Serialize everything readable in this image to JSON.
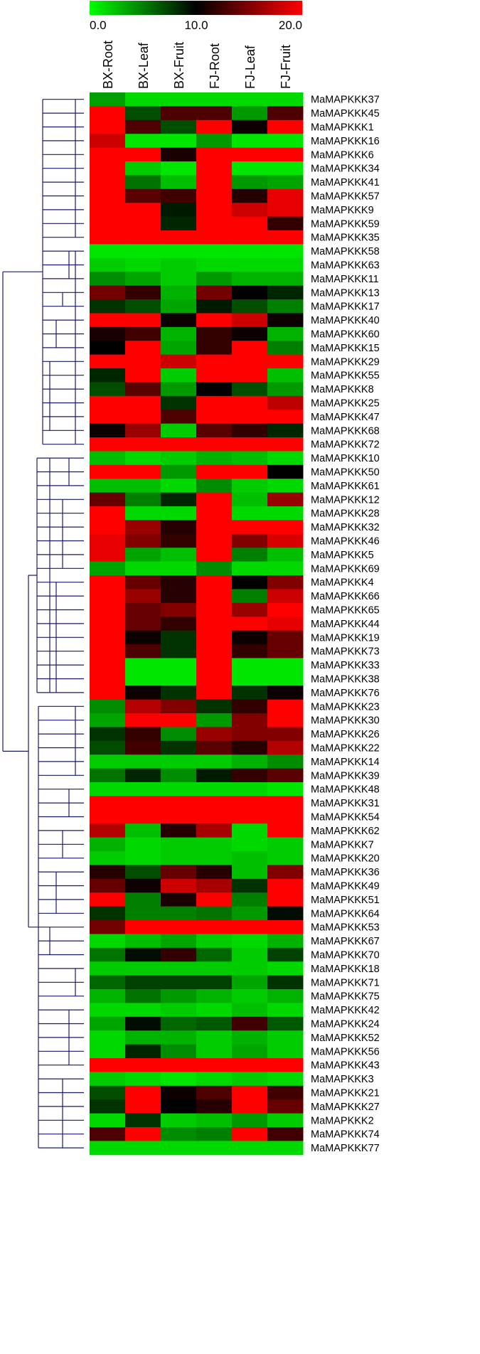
{
  "chart_data": {
    "type": "heatmap",
    "colorbar": {
      "min": 0,
      "max": 20,
      "ticks": [
        "0.0",
        "10.0",
        "20.0"
      ],
      "colors": [
        "#00ff00",
        "#000000",
        "#ff0000"
      ]
    },
    "columns": [
      "BX-Root",
      "BX-Leaf",
      "BX-Fruit",
      "FJ-Root",
      "FJ-Leaf",
      "FJ-Fruit"
    ],
    "rows": [
      {
        "gene": "MaMAPKKK37",
        "values": [
          3.8,
          1.5,
          1.5,
          1.5,
          1.5,
          1.5
        ]
      },
      {
        "gene": "MaMAPKKK45",
        "values": [
          20,
          7,
          13,
          13,
          4,
          13
        ]
      },
      {
        "gene": "MaMAPKKK1",
        "values": [
          20,
          13,
          7,
          20,
          10.5,
          20
        ]
      },
      {
        "gene": "MaMAPKKK16",
        "values": [
          18,
          1,
          1,
          4,
          1,
          1
        ]
      },
      {
        "gene": "MaMAPKKK6",
        "values": [
          20,
          20,
          11,
          20,
          20,
          20
        ]
      },
      {
        "gene": "MaMAPKKK34",
        "values": [
          20,
          2,
          1,
          20,
          1,
          1
        ]
      },
      {
        "gene": "MaMAPKKK41",
        "values": [
          20,
          5.5,
          2.5,
          20,
          4,
          3.5
        ]
      },
      {
        "gene": "MaMAPKKK57",
        "values": [
          20,
          13.5,
          12.5,
          20,
          11.5,
          19
        ]
      },
      {
        "gene": "MaMAPKKK9",
        "values": [
          20,
          20,
          9,
          20,
          18,
          19
        ]
      },
      {
        "gene": "MaMAPKKK59",
        "values": [
          20,
          20,
          8.5,
          20,
          20,
          12
        ]
      },
      {
        "gene": "MaMAPKKK35",
        "values": [
          20,
          20,
          20,
          20,
          20,
          20
        ]
      },
      {
        "gene": "MaMAPKKK58",
        "values": [
          1,
          1,
          1,
          1,
          1,
          1
        ]
      },
      {
        "gene": "MaMAPKKK63",
        "values": [
          2,
          1.5,
          2,
          1.5,
          1.5,
          1.5
        ]
      },
      {
        "gene": "MaMAPKKK11",
        "values": [
          4.5,
          3.5,
          2,
          4,
          3,
          3
        ]
      },
      {
        "gene": "MaMAPKKK13",
        "values": [
          14.5,
          12,
          3,
          14.5,
          10,
          8.5
        ]
      },
      {
        "gene": "MaMAPKKK17",
        "values": [
          8,
          7,
          3.5,
          9,
          7,
          5
        ]
      },
      {
        "gene": "MaMAPKKK40",
        "values": [
          20,
          20,
          10.5,
          20,
          18,
          10.5
        ]
      },
      {
        "gene": "MaMAPKKK60",
        "values": [
          11,
          12.5,
          3,
          12,
          10.5,
          3
        ]
      },
      {
        "gene": "MaMAPKKK15",
        "values": [
          10,
          20,
          3.5,
          12,
          20,
          5
        ]
      },
      {
        "gene": "MaMAPKKK29",
        "values": [
          20,
          20,
          18,
          20,
          20,
          20
        ]
      },
      {
        "gene": "MaMAPKKK55",
        "values": [
          8.5,
          20,
          2,
          20,
          20,
          2.5
        ]
      },
      {
        "gene": "MaMAPKKK8",
        "values": [
          7,
          13.5,
          4,
          10,
          7,
          4
        ]
      },
      {
        "gene": "MaMAPKKK25",
        "values": [
          20,
          20,
          8,
          20,
          20,
          17.5
        ]
      },
      {
        "gene": "MaMAPKKK47",
        "values": [
          20,
          20,
          13,
          20,
          20,
          20
        ]
      },
      {
        "gene": "MaMAPKKK68",
        "values": [
          10.5,
          16,
          2,
          13.5,
          12,
          8.5
        ]
      },
      {
        "gene": "MaMAPKKK72",
        "values": [
          20,
          20,
          20,
          20,
          20,
          20
        ]
      },
      {
        "gene": "MaMAPKKK10",
        "values": [
          2.5,
          1.5,
          2,
          3,
          2.5,
          1.5
        ]
      },
      {
        "gene": "MaMAPKKK50",
        "values": [
          20,
          20,
          4,
          20,
          20,
          10
        ]
      },
      {
        "gene": "MaMAPKKK61",
        "values": [
          2.5,
          2.5,
          1.5,
          4.5,
          2,
          1.5
        ]
      },
      {
        "gene": "MaMAPKKK12",
        "values": [
          14,
          5,
          8.5,
          20,
          2.5,
          16
        ]
      },
      {
        "gene": "MaMAPKKK28",
        "values": [
          20,
          1.5,
          1.5,
          20,
          1.5,
          1.5
        ]
      },
      {
        "gene": "MaMAPKKK32",
        "values": [
          20,
          16,
          11.5,
          20,
          20,
          20
        ]
      },
      {
        "gene": "MaMAPKKK46",
        "values": [
          19,
          15,
          12,
          20,
          15,
          18.5
        ]
      },
      {
        "gene": "MaMAPKKK5",
        "values": [
          19,
          3.5,
          2.5,
          20,
          5,
          2.5
        ]
      },
      {
        "gene": "MaMAPKKK69",
        "values": [
          3.5,
          1.5,
          1.5,
          4.5,
          1.5,
          1.5
        ]
      },
      {
        "gene": "MaMAPKKK4",
        "values": [
          20,
          14,
          11.5,
          20,
          10,
          15
        ]
      },
      {
        "gene": "MaMAPKKK66",
        "values": [
          20,
          16,
          11.5,
          20,
          5,
          18
        ]
      },
      {
        "gene": "MaMAPKKK65",
        "values": [
          20,
          14,
          15,
          20,
          16,
          20
        ]
      },
      {
        "gene": "MaMAPKKK44",
        "values": [
          20,
          14,
          12,
          20,
          20,
          19
        ]
      },
      {
        "gene": "MaMAPKKK19",
        "values": [
          20,
          10.5,
          8,
          20,
          10.5,
          14
        ]
      },
      {
        "gene": "MaMAPKKK73",
        "values": [
          20,
          13,
          8,
          20,
          12,
          14
        ]
      },
      {
        "gene": "MaMAPKKK33",
        "values": [
          20,
          1,
          1,
          20,
          1,
          1
        ]
      },
      {
        "gene": "MaMAPKKK38",
        "values": [
          20,
          1,
          1,
          20,
          1,
          1
        ]
      },
      {
        "gene": "MaMAPKKK76",
        "values": [
          20,
          10.5,
          8,
          20,
          8,
          10.5
        ]
      },
      {
        "gene": "MaMAPKKK23",
        "values": [
          4.5,
          17,
          15,
          8,
          12,
          20
        ]
      },
      {
        "gene": "MaMAPKKK30",
        "values": [
          3.5,
          20,
          20,
          4,
          15,
          20
        ]
      },
      {
        "gene": "MaMAPKKK26",
        "values": [
          8,
          12,
          4.5,
          16,
          15,
          15
        ]
      },
      {
        "gene": "MaMAPKKK22",
        "values": [
          7,
          12.5,
          8,
          13.5,
          11.5,
          17
        ]
      },
      {
        "gene": "MaMAPKKK14",
        "values": [
          2,
          2,
          2,
          2,
          3,
          4.5
        ]
      },
      {
        "gene": "MaMAPKKK39",
        "values": [
          5.5,
          8.5,
          4.5,
          9,
          12,
          13.5
        ]
      },
      {
        "gene": "MaMAPKKK48",
        "values": [
          1.5,
          1.5,
          1.5,
          1.5,
          1.5,
          1
        ]
      },
      {
        "gene": "MaMAPKKK31",
        "values": [
          20,
          20,
          20,
          20,
          20,
          20
        ]
      },
      {
        "gene": "MaMAPKKK54",
        "values": [
          20,
          20,
          20,
          20,
          20,
          20
        ]
      },
      {
        "gene": "MaMAPKKK62",
        "values": [
          17,
          2.5,
          11.5,
          16.5,
          1.5,
          20
        ]
      },
      {
        "gene": "MaMAPKKK7",
        "values": [
          3,
          1.5,
          2,
          2,
          1.5,
          2
        ]
      },
      {
        "gene": "MaMAPKKK20",
        "values": [
          2,
          1.5,
          2,
          2,
          2.5,
          2
        ]
      },
      {
        "gene": "MaMAPKKK36",
        "values": [
          11.5,
          7,
          14,
          11.5,
          2.5,
          15
        ]
      },
      {
        "gene": "MaMAPKKK49",
        "values": [
          14,
          10.5,
          18,
          16.5,
          8,
          20
        ]
      },
      {
        "gene": "MaMAPKKK51",
        "values": [
          20,
          5,
          11,
          20,
          5,
          20
        ]
      },
      {
        "gene": "MaMAPKKK64",
        "values": [
          8,
          5,
          5,
          5.5,
          4,
          9.5
        ]
      },
      {
        "gene": "MaMAPKKK53",
        "values": [
          14.5,
          20,
          20,
          20,
          20,
          20
        ]
      },
      {
        "gene": "MaMAPKKK67",
        "values": [
          1.5,
          2.5,
          3.5,
          2,
          1.5,
          3
        ]
      },
      {
        "gene": "MaMAPKKK70",
        "values": [
          5.5,
          9.5,
          12,
          6,
          2,
          7.5
        ]
      },
      {
        "gene": "MaMAPKKK18",
        "values": [
          2,
          2,
          2,
          2,
          2,
          1.5
        ]
      },
      {
        "gene": "MaMAPKKK71",
        "values": [
          6,
          7.5,
          7.5,
          7.5,
          3.5,
          8
        ]
      },
      {
        "gene": "MaMAPKKK75",
        "values": [
          3,
          5.5,
          4,
          3,
          2,
          3
        ]
      },
      {
        "gene": "MaMAPKKK42",
        "values": [
          1.5,
          1.5,
          2,
          1.5,
          2.5,
          1.5
        ]
      },
      {
        "gene": "MaMAPKKK24",
        "values": [
          3.5,
          9.5,
          6,
          6.5,
          12.5,
          6.5
        ]
      },
      {
        "gene": "MaMAPKKK52",
        "values": [
          1.5,
          3,
          3,
          2,
          3,
          2
        ]
      },
      {
        "gene": "MaMAPKKK56",
        "values": [
          1.5,
          8.5,
          4.5,
          2,
          3.5,
          2
        ]
      },
      {
        "gene": "MaMAPKKK43",
        "values": [
          20,
          20,
          20,
          20,
          20,
          20
        ]
      },
      {
        "gene": "MaMAPKKK3",
        "values": [
          2,
          1.5,
          1,
          1.5,
          2,
          1.5
        ]
      },
      {
        "gene": "MaMAPKKK21",
        "values": [
          7,
          20,
          10.5,
          13,
          20,
          12.5
        ]
      },
      {
        "gene": "MaMAPKKK27",
        "values": [
          8,
          20,
          10,
          11.5,
          20,
          14
        ]
      },
      {
        "gene": "MaMAPKKK2",
        "values": [
          1.5,
          8,
          2,
          2.5,
          4,
          2
        ]
      },
      {
        "gene": "MaMAPKKK74",
        "values": [
          13,
          20,
          4.5,
          5,
          20,
          12.5
        ]
      },
      {
        "gene": "MaMAPKKK77",
        "values": [
          1.5,
          1.5,
          1.5,
          1.5,
          1.5,
          1.5
        ]
      }
    ]
  }
}
